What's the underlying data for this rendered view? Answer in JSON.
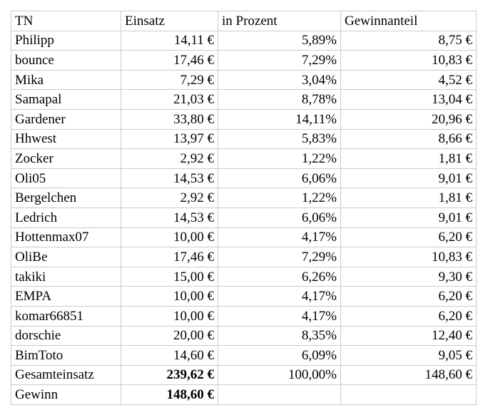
{
  "table": {
    "headers": [
      "TN",
      "Einsatz",
      "in Prozent",
      "Gewinnanteil"
    ],
    "rows": [
      [
        "Philipp",
        "14,11 €",
        "5,89%",
        "8,75 €"
      ],
      [
        "bounce",
        "17,46 €",
        "7,29%",
        "10,83 €"
      ],
      [
        "Mika",
        "7,29 €",
        "3,04%",
        "4,52 €"
      ],
      [
        "Samapal",
        "21,03 €",
        "8,78%",
        "13,04 €"
      ],
      [
        "Gardener",
        "33,80 €",
        "14,11%",
        "20,96 €"
      ],
      [
        "Hhwest",
        "13,97 €",
        "5,83%",
        "8,66 €"
      ],
      [
        "Zocker",
        "2,92 €",
        "1,22%",
        "1,81 €"
      ],
      [
        "Oli05",
        "14,53 €",
        "6,06%",
        "9,01 €"
      ],
      [
        "Bergelchen",
        "2,92 €",
        "1,22%",
        "1,81 €"
      ],
      [
        "Ledrich",
        "14,53 €",
        "6,06%",
        "9,01 €"
      ],
      [
        "Hottenmax07",
        "10,00 €",
        "4,17%",
        "6,20 €"
      ],
      [
        "OliBe",
        "17,46 €",
        "7,29%",
        "10,83 €"
      ],
      [
        "takiki",
        "15,00 €",
        "6,26%",
        "9,30 €"
      ],
      [
        "EMPA",
        "10,00 €",
        "4,17%",
        "6,20 €"
      ],
      [
        "komar66851",
        "10,00 €",
        "4,17%",
        "6,20 €"
      ],
      [
        "dorschie",
        "20,00 €",
        "8,35%",
        "12,40 €"
      ],
      [
        "BimToto",
        "14,60 €",
        "6,09%",
        "9,05 €"
      ]
    ],
    "total_row": [
      "Gesamteinsatz",
      "239,62 €",
      "100,00%",
      "148,60 €"
    ],
    "gewinn_row": [
      "Gewinn",
      "148,60 €",
      "",
      ""
    ]
  },
  "colors": {
    "border": "#c9c9d6",
    "text": "#000000",
    "background": "#ffffff"
  }
}
